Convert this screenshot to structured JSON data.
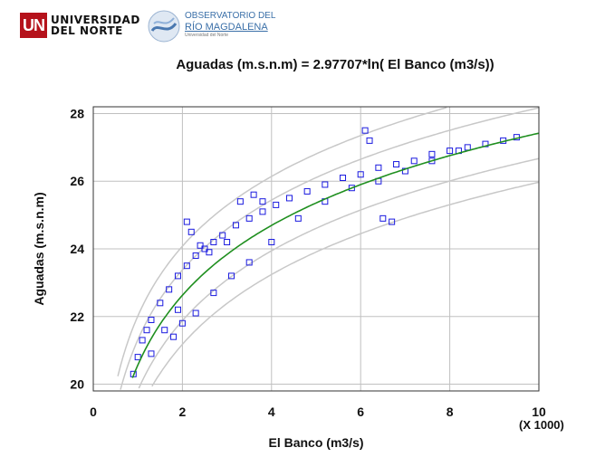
{
  "header": {
    "un_mark": "UN",
    "university_line1": "UNIVERSIDAD",
    "university_line2": "DEL NORTE",
    "observatory_line1": "OBSERVATORIO DEL",
    "observatory_line2": "RÍO MAGDALENA",
    "observatory_line3": "Universidad del Norte"
  },
  "chart_data": {
    "type": "scatter",
    "title": "Aguadas (m.s.n.m) = 2.97707*ln( El Banco (m3/s))",
    "xlabel": "El Banco (m3/s)",
    "ylabel": "Aguadas (m.s.n.m)",
    "x_multiplier_label": "(X 1000)",
    "xlim": [
      0,
      10
    ],
    "ylim": [
      19.8,
      28.2
    ],
    "xticks": [
      "0",
      "2",
      "4",
      "6",
      "8",
      "10"
    ],
    "yticks": [
      "20",
      "22",
      "24",
      "26",
      "28"
    ],
    "grid": true,
    "fit": {
      "model": "y = 2.97707*ln(x)",
      "coef": 2.97707,
      "x_unit_scale": 1000
    },
    "colors": {
      "points": "#1a1adf",
      "fit_line": "#1f8f1f",
      "bands": "#c8c8c8",
      "grid": "#c0c0c0"
    },
    "series": [
      {
        "x": [
          0.9,
          1.0,
          1.1,
          1.2,
          1.3,
          1.5,
          1.7,
          1.9,
          2.1,
          2.3,
          2.5,
          2.7,
          2.9,
          3.2,
          3.5,
          3.8,
          4.1,
          4.4,
          4.8,
          5.2,
          5.6,
          6.0,
          6.4,
          6.8,
          7.2,
          7.6,
          8.0,
          8.4,
          8.8,
          9.2,
          9.5,
          1.3,
          1.6,
          1.9,
          2.1,
          2.2,
          2.4,
          2.6,
          3.0,
          3.3,
          3.6,
          3.8,
          1.8,
          2.0,
          2.3,
          2.7,
          3.1,
          3.5,
          4.0,
          4.6,
          5.2,
          5.8,
          6.4,
          7.0,
          7.6,
          8.2,
          6.1,
          6.2,
          6.5,
          6.7
        ],
        "y": [
          20.3,
          20.8,
          21.3,
          21.6,
          21.9,
          22.4,
          22.8,
          23.2,
          23.5,
          23.8,
          24.0,
          24.2,
          24.4,
          24.7,
          24.9,
          25.1,
          25.3,
          25.5,
          25.7,
          25.9,
          26.1,
          26.2,
          26.4,
          26.5,
          26.6,
          26.8,
          26.9,
          27.0,
          27.1,
          27.2,
          27.3,
          20.9,
          21.6,
          22.2,
          24.8,
          24.5,
          24.1,
          23.9,
          24.2,
          25.4,
          25.6,
          25.4,
          21.4,
          21.8,
          22.1,
          22.7,
          23.2,
          23.6,
          24.2,
          24.9,
          25.4,
          25.8,
          26.0,
          26.3,
          26.6,
          26.9,
          27.5,
          27.2,
          24.9,
          24.8
        ]
      }
    ]
  }
}
